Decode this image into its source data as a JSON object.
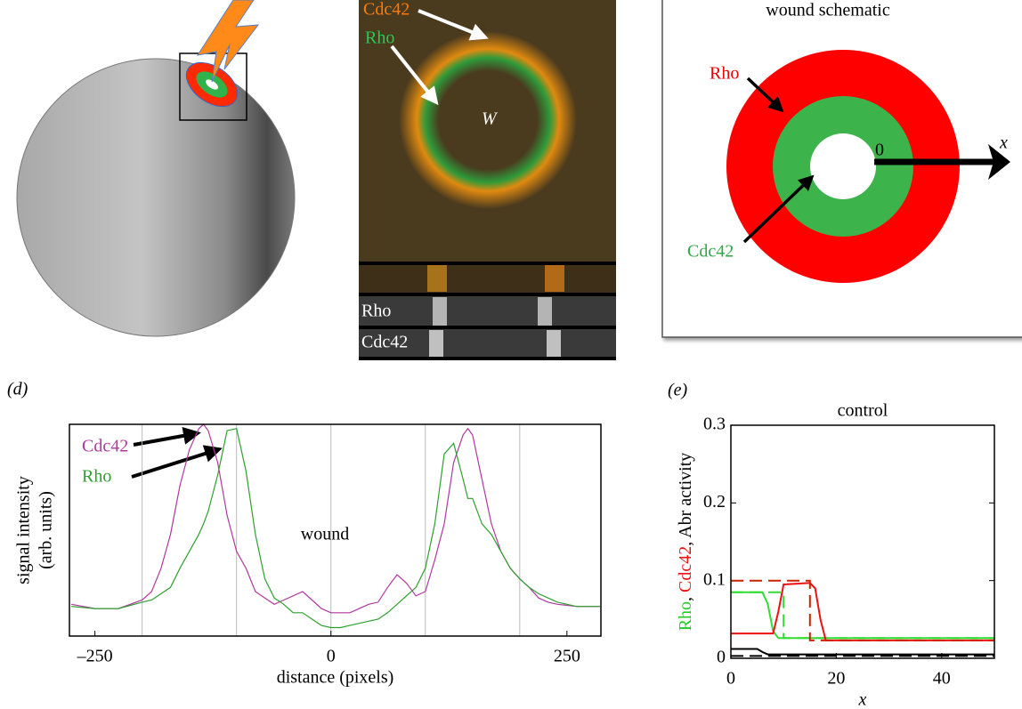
{
  "figure": {
    "panel_b": {
      "labels": [
        "Cdc42",
        "Rho"
      ],
      "wound": "W",
      "strips": [
        "Rho",
        "Cdc42"
      ]
    },
    "panel_c": {
      "title": "wound schematic",
      "outer": "Rho",
      "inner": "Cdc42",
      "origin": "0",
      "axis": "x"
    }
  },
  "chart_data": [
    {
      "type": "line",
      "label": "(d)",
      "xlabel": "distance (pixels)",
      "ylabel": [
        "signal intensity",
        "(arb. units)"
      ],
      "annotations": [
        "wound"
      ],
      "xlim": [
        -277,
        286
      ],
      "ylim": [
        0,
        1
      ],
      "xticks": [
        {
          "value": -250,
          "label": "–250"
        },
        0,
        250
      ],
      "xgrid": [
        -200,
        -100,
        0,
        100,
        200
      ],
      "x": [
        -275,
        -250,
        -225,
        -200,
        -190,
        -180,
        -170,
        -160,
        -150,
        -140,
        -135,
        -130,
        -120,
        -110,
        -100,
        -90,
        -80,
        -70,
        -60,
        -50,
        -40,
        -30,
        -20,
        -10,
        0,
        10,
        20,
        30,
        40,
        50,
        60,
        70,
        80,
        90,
        100,
        110,
        120,
        130,
        140,
        145,
        150,
        160,
        170,
        180,
        190,
        200,
        210,
        220,
        230,
        240,
        260,
        285
      ],
      "series": [
        {
          "name": "Cdc42",
          "color": "#b0389e",
          "values": [
            0.15,
            0.13,
            0.13,
            0.17,
            0.21,
            0.32,
            0.48,
            0.71,
            0.88,
            0.98,
            1.0,
            0.97,
            0.82,
            0.57,
            0.4,
            0.32,
            0.21,
            0.18,
            0.15,
            0.17,
            0.19,
            0.21,
            0.17,
            0.13,
            0.11,
            0.11,
            0.11,
            0.13,
            0.15,
            0.16,
            0.23,
            0.29,
            0.25,
            0.19,
            0.21,
            0.36,
            0.53,
            0.82,
            0.95,
            0.98,
            0.95,
            0.74,
            0.53,
            0.4,
            0.32,
            0.27,
            0.23,
            0.18,
            0.16,
            0.15,
            0.14,
            0.14
          ]
        },
        {
          "name": "Rho",
          "color": "#2ea02e",
          "values": [
            0.14,
            0.13,
            0.13,
            0.16,
            0.17,
            0.2,
            0.23,
            0.32,
            0.4,
            0.48,
            0.53,
            0.59,
            0.76,
            0.97,
            0.98,
            0.78,
            0.48,
            0.27,
            0.18,
            0.15,
            0.11,
            0.11,
            0.08,
            0.05,
            0.04,
            0.04,
            0.05,
            0.06,
            0.07,
            0.08,
            0.11,
            0.15,
            0.19,
            0.23,
            0.32,
            0.53,
            0.86,
            0.91,
            0.74,
            0.65,
            0.65,
            0.53,
            0.48,
            0.4,
            0.32,
            0.27,
            0.23,
            0.2,
            0.18,
            0.16,
            0.14,
            0.14
          ]
        }
      ]
    },
    {
      "type": "line",
      "label": "(e)",
      "title": "control",
      "xlabel": "x",
      "ylabel": [
        {
          "text": "Rho",
          "color": "#22cc22"
        },
        {
          "text": ", ",
          "color": "#000000"
        },
        {
          "text": "Cdc42",
          "color": "#ee1111"
        },
        {
          "text": ", Abr activity",
          "color": "#000000"
        }
      ],
      "xlim": [
        0,
        50
      ],
      "ylim": [
        0,
        0.3
      ],
      "xticks": [
        0,
        20,
        40
      ],
      "yticks": [
        0,
        0.1,
        0.2,
        0.3
      ],
      "series": [
        {
          "color": "#33dd33",
          "dash": false,
          "x": [
            0,
            6,
            7,
            8,
            9,
            50
          ],
          "values": [
            0.085,
            0.085,
            0.07,
            0.035,
            0.026,
            0.026
          ]
        },
        {
          "color": "#33dd33",
          "dash": true,
          "x": [
            0,
            10,
            10,
            50
          ],
          "values": [
            0.085,
            0.085,
            0.026,
            0.026
          ]
        },
        {
          "color": "#ee1111",
          "dash": false,
          "x": [
            0,
            8,
            9,
            10,
            15,
            16,
            17,
            18,
            50
          ],
          "values": [
            0.032,
            0.032,
            0.06,
            0.095,
            0.097,
            0.09,
            0.05,
            0.023,
            0.023
          ]
        },
        {
          "color": "#cc2200",
          "dash": true,
          "x": [
            0,
            15,
            15,
            50
          ],
          "values": [
            0.1,
            0.1,
            0.023,
            0.023
          ]
        },
        {
          "color": "#000000",
          "dash": false,
          "x": [
            0,
            5,
            6,
            7,
            50
          ],
          "values": [
            0.012,
            0.012,
            0.008,
            0.005,
            0.005
          ]
        },
        {
          "color": "#000000",
          "dash": true,
          "x": [
            0,
            50
          ],
          "values": [
            0.003,
            0.003
          ]
        }
      ]
    }
  ]
}
